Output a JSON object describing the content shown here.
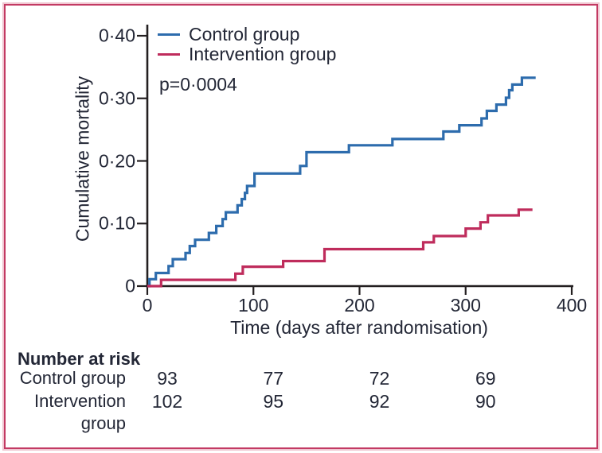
{
  "figure": {
    "border_color": "#c33a63",
    "background": "#ffffff"
  },
  "legend": {
    "items": [
      {
        "label": "Control group",
        "color": "#2d6cad"
      },
      {
        "label": "Intervention group",
        "color": "#bf2c5c"
      }
    ]
  },
  "chart_data": {
    "type": "line",
    "subtype": "kaplan-meier-step",
    "title": "",
    "xlabel": "Time (days after randomisation)",
    "ylabel": "Cumulative mortality",
    "p_value": "p=0·0004",
    "xlim": [
      0,
      400
    ],
    "ylim": [
      0,
      0.4
    ],
    "grid": false,
    "legend_position": "top-left-inside",
    "axis_color": "#231f20",
    "x_ticks": {
      "values": [
        0,
        100,
        200,
        300,
        400
      ],
      "labels": [
        "0",
        "100",
        "200",
        "300",
        "400"
      ]
    },
    "y_ticks": {
      "values": [
        0,
        0.1,
        0.2,
        0.3,
        0.4
      ],
      "labels": [
        "0",
        "0·10",
        "0·20",
        "0·30",
        "0·40"
      ]
    },
    "series": [
      {
        "name": "Control group",
        "color": "#2d6cad",
        "end_x": 366,
        "steps": [
          [
            0,
            0
          ],
          [
            2,
            0.011
          ],
          [
            8,
            0.021
          ],
          [
            20,
            0.032
          ],
          [
            24,
            0.043
          ],
          [
            36,
            0.053
          ],
          [
            40,
            0.064
          ],
          [
            45,
            0.074
          ],
          [
            58,
            0.085
          ],
          [
            65,
            0.096
          ],
          [
            71,
            0.107
          ],
          [
            74,
            0.118
          ],
          [
            85,
            0.129
          ],
          [
            89,
            0.139
          ],
          [
            92,
            0.149
          ],
          [
            94,
            0.16
          ],
          [
            101,
            0.18
          ],
          [
            144,
            0.192
          ],
          [
            150,
            0.214
          ],
          [
            190,
            0.225
          ],
          [
            231,
            0.235
          ],
          [
            279,
            0.247
          ],
          [
            294,
            0.257
          ],
          [
            315,
            0.268
          ],
          [
            320,
            0.28
          ],
          [
            329,
            0.29
          ],
          [
            338,
            0.301
          ],
          [
            341,
            0.313
          ],
          [
            344,
            0.322
          ],
          [
            353,
            0.333
          ]
        ]
      },
      {
        "name": "Intervention group",
        "color": "#bf2c5c",
        "end_x": 363,
        "steps": [
          [
            0,
            0
          ],
          [
            13,
            0.01
          ],
          [
            83,
            0.02
          ],
          [
            90,
            0.031
          ],
          [
            128,
            0.04
          ],
          [
            167,
            0.059
          ],
          [
            260,
            0.07
          ],
          [
            270,
            0.08
          ],
          [
            300,
            0.092
          ],
          [
            314,
            0.102
          ],
          [
            321,
            0.113
          ],
          [
            350,
            0.122
          ]
        ]
      }
    ]
  },
  "risk_table": {
    "title": "Number at risk",
    "time_points": [
      0,
      100,
      200,
      300
    ],
    "rows": [
      {
        "label": "Control group",
        "values": [
          93,
          77,
          72,
          69
        ]
      },
      {
        "label": "Intervention group",
        "values": [
          102,
          95,
          92,
          90
        ]
      }
    ]
  }
}
